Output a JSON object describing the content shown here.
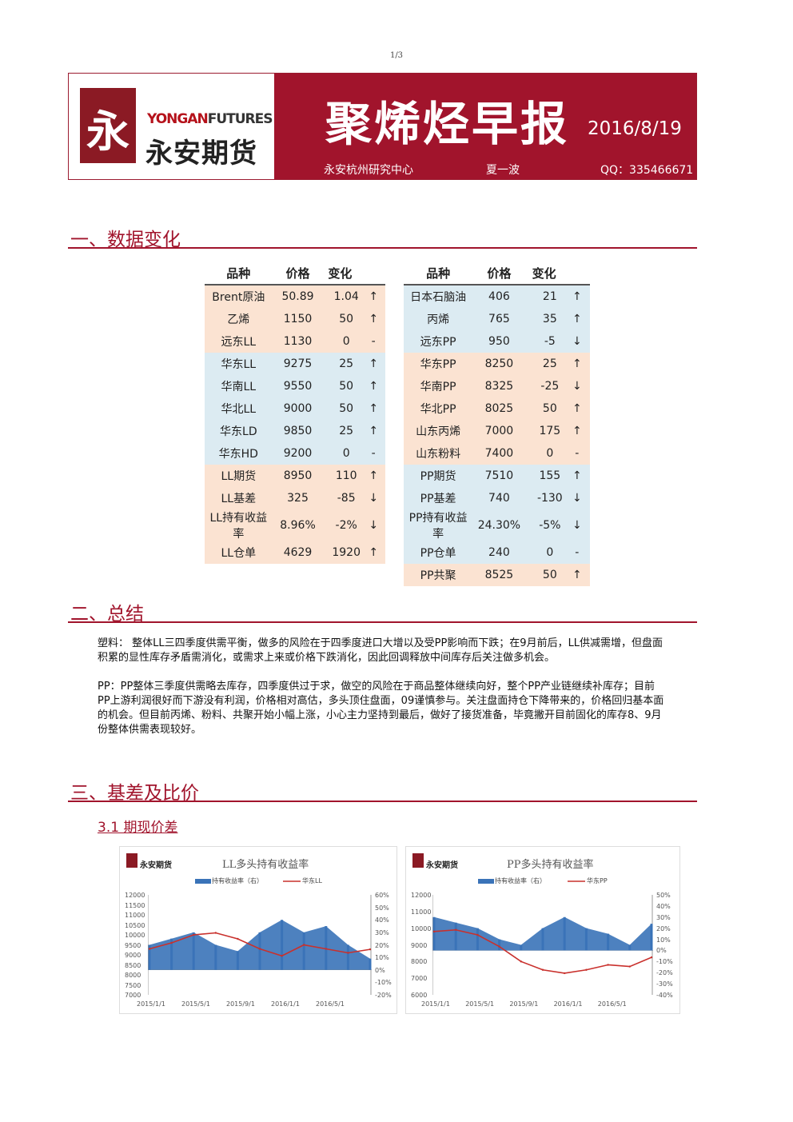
{
  "page_number": "1/3",
  "header": {
    "logo_en_1": "YONGAN",
    "logo_en_2": "FUTURES",
    "logo_cn": "永安期货",
    "title": "聚烯烃早报",
    "date": "2016/8/19",
    "center": "永安杭州研究中心",
    "author": "夏一波",
    "qq": "QQ：335466671"
  },
  "sections": {
    "s1": "一、数据变化",
    "s2": "二、总结",
    "s3": "三、基差及比价",
    "s31": "3.1 期现价差"
  },
  "table_headers": [
    "品种",
    "价格",
    "变化"
  ],
  "left_rows": [
    {
      "name": "Brent原油",
      "price": "50.89",
      "change": "1.04",
      "arrow": "↑",
      "bg": "o"
    },
    {
      "name": "乙烯",
      "price": "1150",
      "change": "50",
      "arrow": "↑",
      "bg": "o"
    },
    {
      "name": "远东LL",
      "price": "1130",
      "change": "0",
      "arrow": "-",
      "bg": "o"
    },
    {
      "name": "华东LL",
      "price": "9275",
      "change": "25",
      "arrow": "↑",
      "bg": "b"
    },
    {
      "name": "华南LL",
      "price": "9550",
      "change": "50",
      "arrow": "↑",
      "bg": "b"
    },
    {
      "name": "华北LL",
      "price": "9000",
      "change": "50",
      "arrow": "↑",
      "bg": "b"
    },
    {
      "name": "华东LD",
      "price": "9850",
      "change": "25",
      "arrow": "↑",
      "bg": "b"
    },
    {
      "name": "华东HD",
      "price": "9200",
      "change": "0",
      "arrow": "-",
      "bg": "b"
    },
    {
      "name": "LL期货",
      "price": "8950",
      "change": "110",
      "arrow": "↑",
      "bg": "o"
    },
    {
      "name": "LL基差",
      "price": "325",
      "change": "-85",
      "arrow": "↓",
      "bg": "o"
    },
    {
      "name": "LL持有收益率",
      "price": "8.96%",
      "change": "-2%",
      "arrow": "↓",
      "bg": "o"
    },
    {
      "name": "LL仓单",
      "price": "4629",
      "change": "1920",
      "arrow": "↑",
      "bg": "o"
    }
  ],
  "right_rows": [
    {
      "name": "日本石脑油",
      "price": "406",
      "change": "21",
      "arrow": "↑",
      "bg": "b"
    },
    {
      "name": "丙烯",
      "price": "765",
      "change": "35",
      "arrow": "↑",
      "bg": "b"
    },
    {
      "name": "远东PP",
      "price": "950",
      "change": "-5",
      "arrow": "↓",
      "bg": "b"
    },
    {
      "name": "华东PP",
      "price": "8250",
      "change": "25",
      "arrow": "↑",
      "bg": "o"
    },
    {
      "name": "华南PP",
      "price": "8325",
      "change": "-25",
      "arrow": "↓",
      "bg": "o"
    },
    {
      "name": "华北PP",
      "price": "8025",
      "change": "50",
      "arrow": "↑",
      "bg": "o"
    },
    {
      "name": "山东丙烯",
      "price": "7000",
      "change": "175",
      "arrow": "↑",
      "bg": "o"
    },
    {
      "name": "山东粉料",
      "price": "7400",
      "change": "0",
      "arrow": "-",
      "bg": "o"
    },
    {
      "name": "PP期货",
      "price": "7510",
      "change": "155",
      "arrow": "↑",
      "bg": "b"
    },
    {
      "name": "PP基差",
      "price": "740",
      "change": "-130",
      "arrow": "↓",
      "bg": "b"
    },
    {
      "name": "PP持有收益率",
      "price": "24.30%",
      "change": "-5%",
      "arrow": "↓",
      "bg": "b"
    },
    {
      "name": "PP仓单",
      "price": "240",
      "change": "0",
      "arrow": "-",
      "bg": "b"
    },
    {
      "name": "PP共聚",
      "price": "8525",
      "change": "50",
      "arrow": "↑",
      "bg": "o"
    }
  ],
  "summary": {
    "plastic": "塑料： 整体LL三四季度供需平衡，做多的风险在于四季度进口大增以及受PP影响而下跌；在9月前后，LL供减需增，但盘面积累的显性库存矛盾需消化，或需求上来或价格下跌消化，因此回调释放中间库存后关注做多机会。",
    "pp": "PP：PP整体三季度供需略去库存，四季度供过于求，做空的风险在于商品整体继续向好，整个PP产业链继续补库存；目前PP上游利润很好而下游没有利润，价格相对高估，多头顶住盘面，09谨慎参与。关注盘面持仓下降带来的，价格回归基本面的机会。但目前丙烯、粉料、共聚开始小幅上涨，小心主力坚持到最后，做好了接货准备，毕竟撇开目前固化的库存8、9月份整体供需表现较好。"
  },
  "colors": {
    "brand": "#a1142c",
    "bar": "#3a73b8",
    "line": "#c9302c",
    "blue_row": "#dcebf2",
    "orange_row": "#fbe3d2"
  },
  "chart_data": [
    {
      "type": "bar",
      "title": "LL多头持有收益率",
      "logo": "永安期货",
      "series": [
        {
          "name": "持有收益率（右）",
          "kind": "bar",
          "axis": "right",
          "x": [
            "2015/1/1",
            "2015/3/1",
            "2015/5/1",
            "2015/7/1",
            "2015/9/1",
            "2015/11/1",
            "2016/1/1",
            "2016/3/1",
            "2016/5/1",
            "2016/7/1",
            "2016/8/19"
          ],
          "values": [
            0.2,
            0.25,
            0.3,
            0.2,
            0.15,
            0.3,
            0.4,
            0.3,
            0.35,
            0.2,
            0.09
          ]
        },
        {
          "name": "华东LL",
          "kind": "line",
          "axis": "left",
          "x": [
            "2015/1/1",
            "2015/3/1",
            "2015/5/1",
            "2015/7/1",
            "2015/9/1",
            "2015/11/1",
            "2016/1/1",
            "2016/3/1",
            "2016/5/1",
            "2016/7/1",
            "2016/8/19"
          ],
          "values": [
            9300,
            9600,
            10000,
            10100,
            9800,
            9300,
            8950,
            9500,
            9300,
            9100,
            9275
          ]
        }
      ],
      "left_ticks": [
        "12000",
        "11500",
        "11000",
        "10500",
        "10000",
        "9500",
        "9000",
        "8500",
        "8000",
        "7500",
        "7000"
      ],
      "right_ticks": [
        "60%",
        "50%",
        "40%",
        "30%",
        "20%",
        "10%",
        "0%",
        "-10%",
        "-20%"
      ],
      "x_ticks": [
        "2015/1/1",
        "2015/5/1",
        "2015/9/1",
        "2016/1/1",
        "2016/5/1"
      ],
      "ylim_left": [
        7000,
        12000
      ],
      "ylim_right": [
        -0.2,
        0.6
      ]
    },
    {
      "type": "bar",
      "title": "PP多头持有收益率",
      "logo": "永安期货",
      "series": [
        {
          "name": "持有收益率（右）",
          "kind": "bar",
          "axis": "right",
          "x": [
            "2015/1/1",
            "2015/3/1",
            "2015/5/1",
            "2015/7/1",
            "2015/9/1",
            "2015/11/1",
            "2016/1/1",
            "2016/3/1",
            "2016/5/1",
            "2016/7/1",
            "2016/8/19"
          ],
          "values": [
            0.3,
            0.25,
            0.2,
            0.1,
            0.05,
            0.2,
            0.3,
            0.2,
            0.15,
            0.05,
            0.24
          ]
        },
        {
          "name": "华东PP",
          "kind": "line",
          "axis": "left",
          "x": [
            "2015/1/1",
            "2015/3/1",
            "2015/5/1",
            "2015/7/1",
            "2015/9/1",
            "2015/11/1",
            "2016/1/1",
            "2016/3/1",
            "2016/5/1",
            "2016/7/1",
            "2016/8/19"
          ],
          "values": [
            9800,
            9900,
            9600,
            8900,
            8000,
            7500,
            7300,
            7500,
            7800,
            7700,
            8250
          ]
        }
      ],
      "left_ticks": [
        "12000",
        "11000",
        "10000",
        "9000",
        "8000",
        "7000",
        "6000"
      ],
      "right_ticks": [
        "50%",
        "40%",
        "30%",
        "20%",
        "10%",
        "0%",
        "-10%",
        "-20%",
        "-30%",
        "-40%"
      ],
      "x_ticks": [
        "2015/1/1",
        "2015/5/1",
        "2015/9/1",
        "2016/1/1",
        "2016/5/1"
      ],
      "ylim_left": [
        6000,
        12000
      ],
      "ylim_right": [
        -0.4,
        0.5
      ]
    }
  ]
}
